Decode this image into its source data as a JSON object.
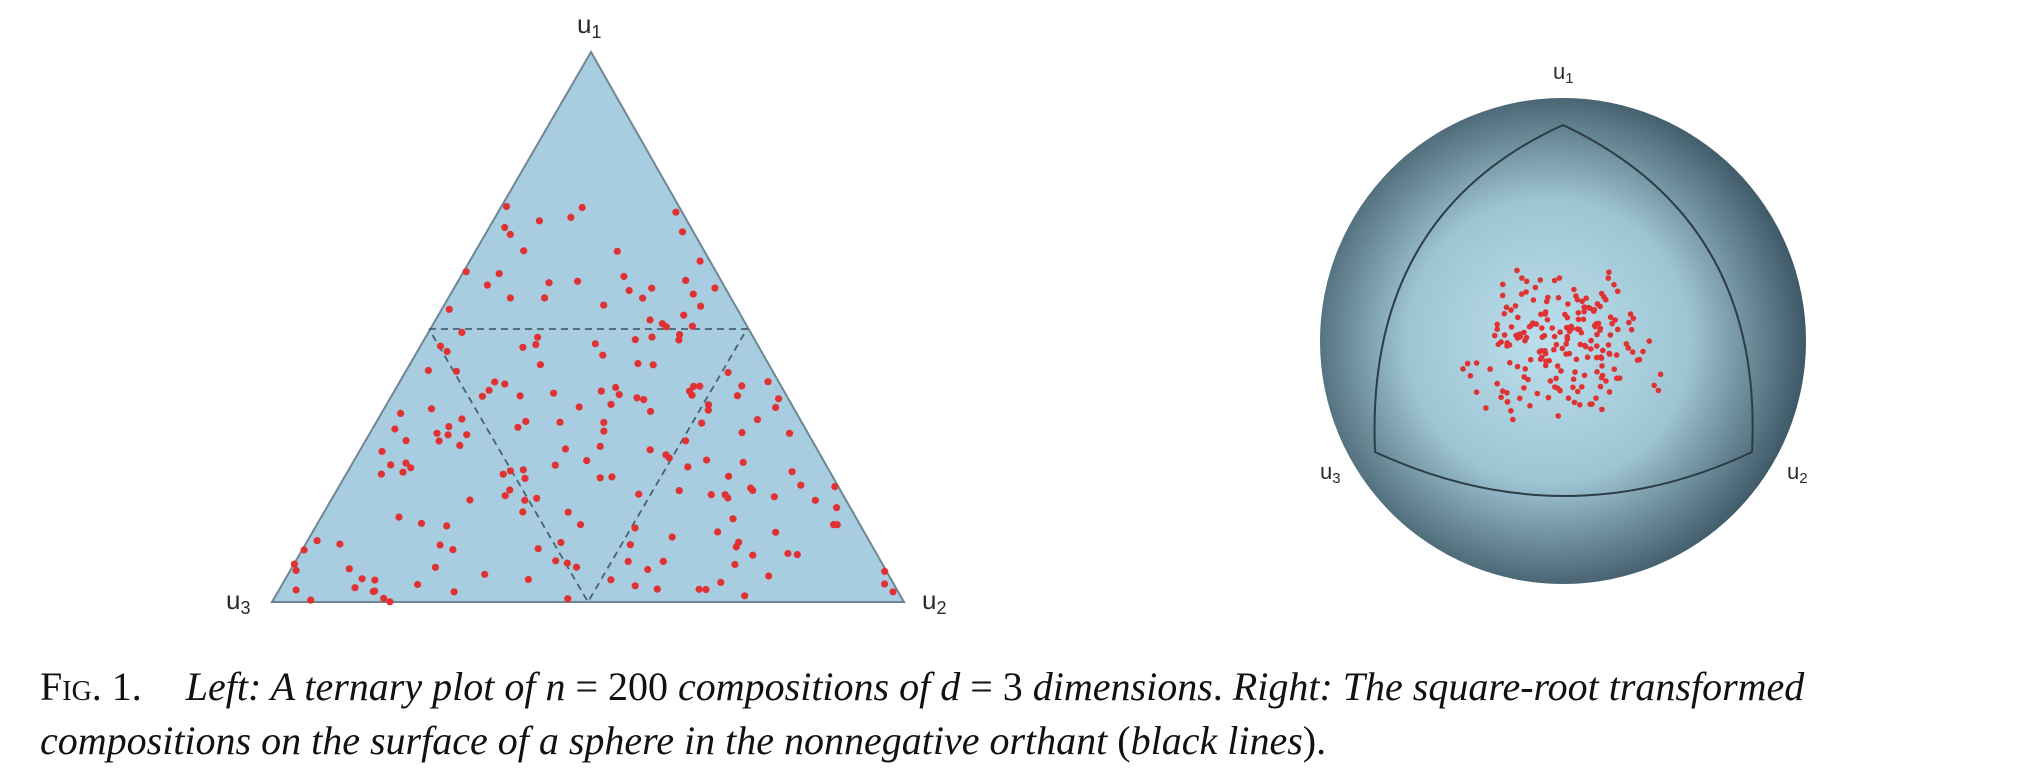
{
  "ternary": {
    "labels": {
      "top": "u",
      "right": "u",
      "left": "u",
      "top_sub": "1",
      "right_sub": "2",
      "left_sub": "3"
    }
  },
  "sphere": {
    "labels": {
      "top": "u",
      "right": "u",
      "left": "u",
      "top_sub": "1",
      "right_sub": "2",
      "left_sub": "3"
    }
  },
  "colors": {
    "triangle_fill": "#a8cde0",
    "point": "#e03232",
    "sphere_center": "#bcdfec",
    "sphere_edge": "#3e5866"
  },
  "caption": {
    "fig": "Fig. 1.",
    "left_word": "Left",
    "left_text": ": A ternary plot of ",
    "n_var": "n",
    "n_eq": " = 200 ",
    "mid_text": "compositions of ",
    "d_var": "d",
    "d_eq": " = 3 ",
    "dims_text": "dimensions",
    "sep": ". ",
    "right_word": "Right",
    "right_text": ": The square-root transformed",
    "line2_text": "compositions on the surface of a sphere in the nonnegative orthant ",
    "paren_open": "(",
    "black_lines": "black lines",
    "paren_close": ").",
    "n_value": 200,
    "d_value": 3
  },
  "chart_data": {
    "type": "scatter",
    "n": 200,
    "d": 3,
    "seed": 11
  }
}
